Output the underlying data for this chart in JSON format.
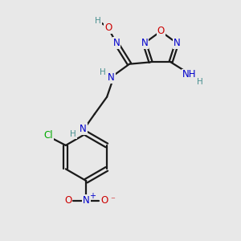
{
  "bg_color": "#e8e8e8",
  "bond_color": "#1a1a1a",
  "N_color": "#0000cc",
  "O_color": "#cc0000",
  "Cl_color": "#00aa00",
  "H_color": "#4a9090",
  "figsize": [
    3.0,
    3.0
  ],
  "dpi": 100,
  "xlim": [
    0,
    10
  ],
  "ylim": [
    0,
    10
  ]
}
